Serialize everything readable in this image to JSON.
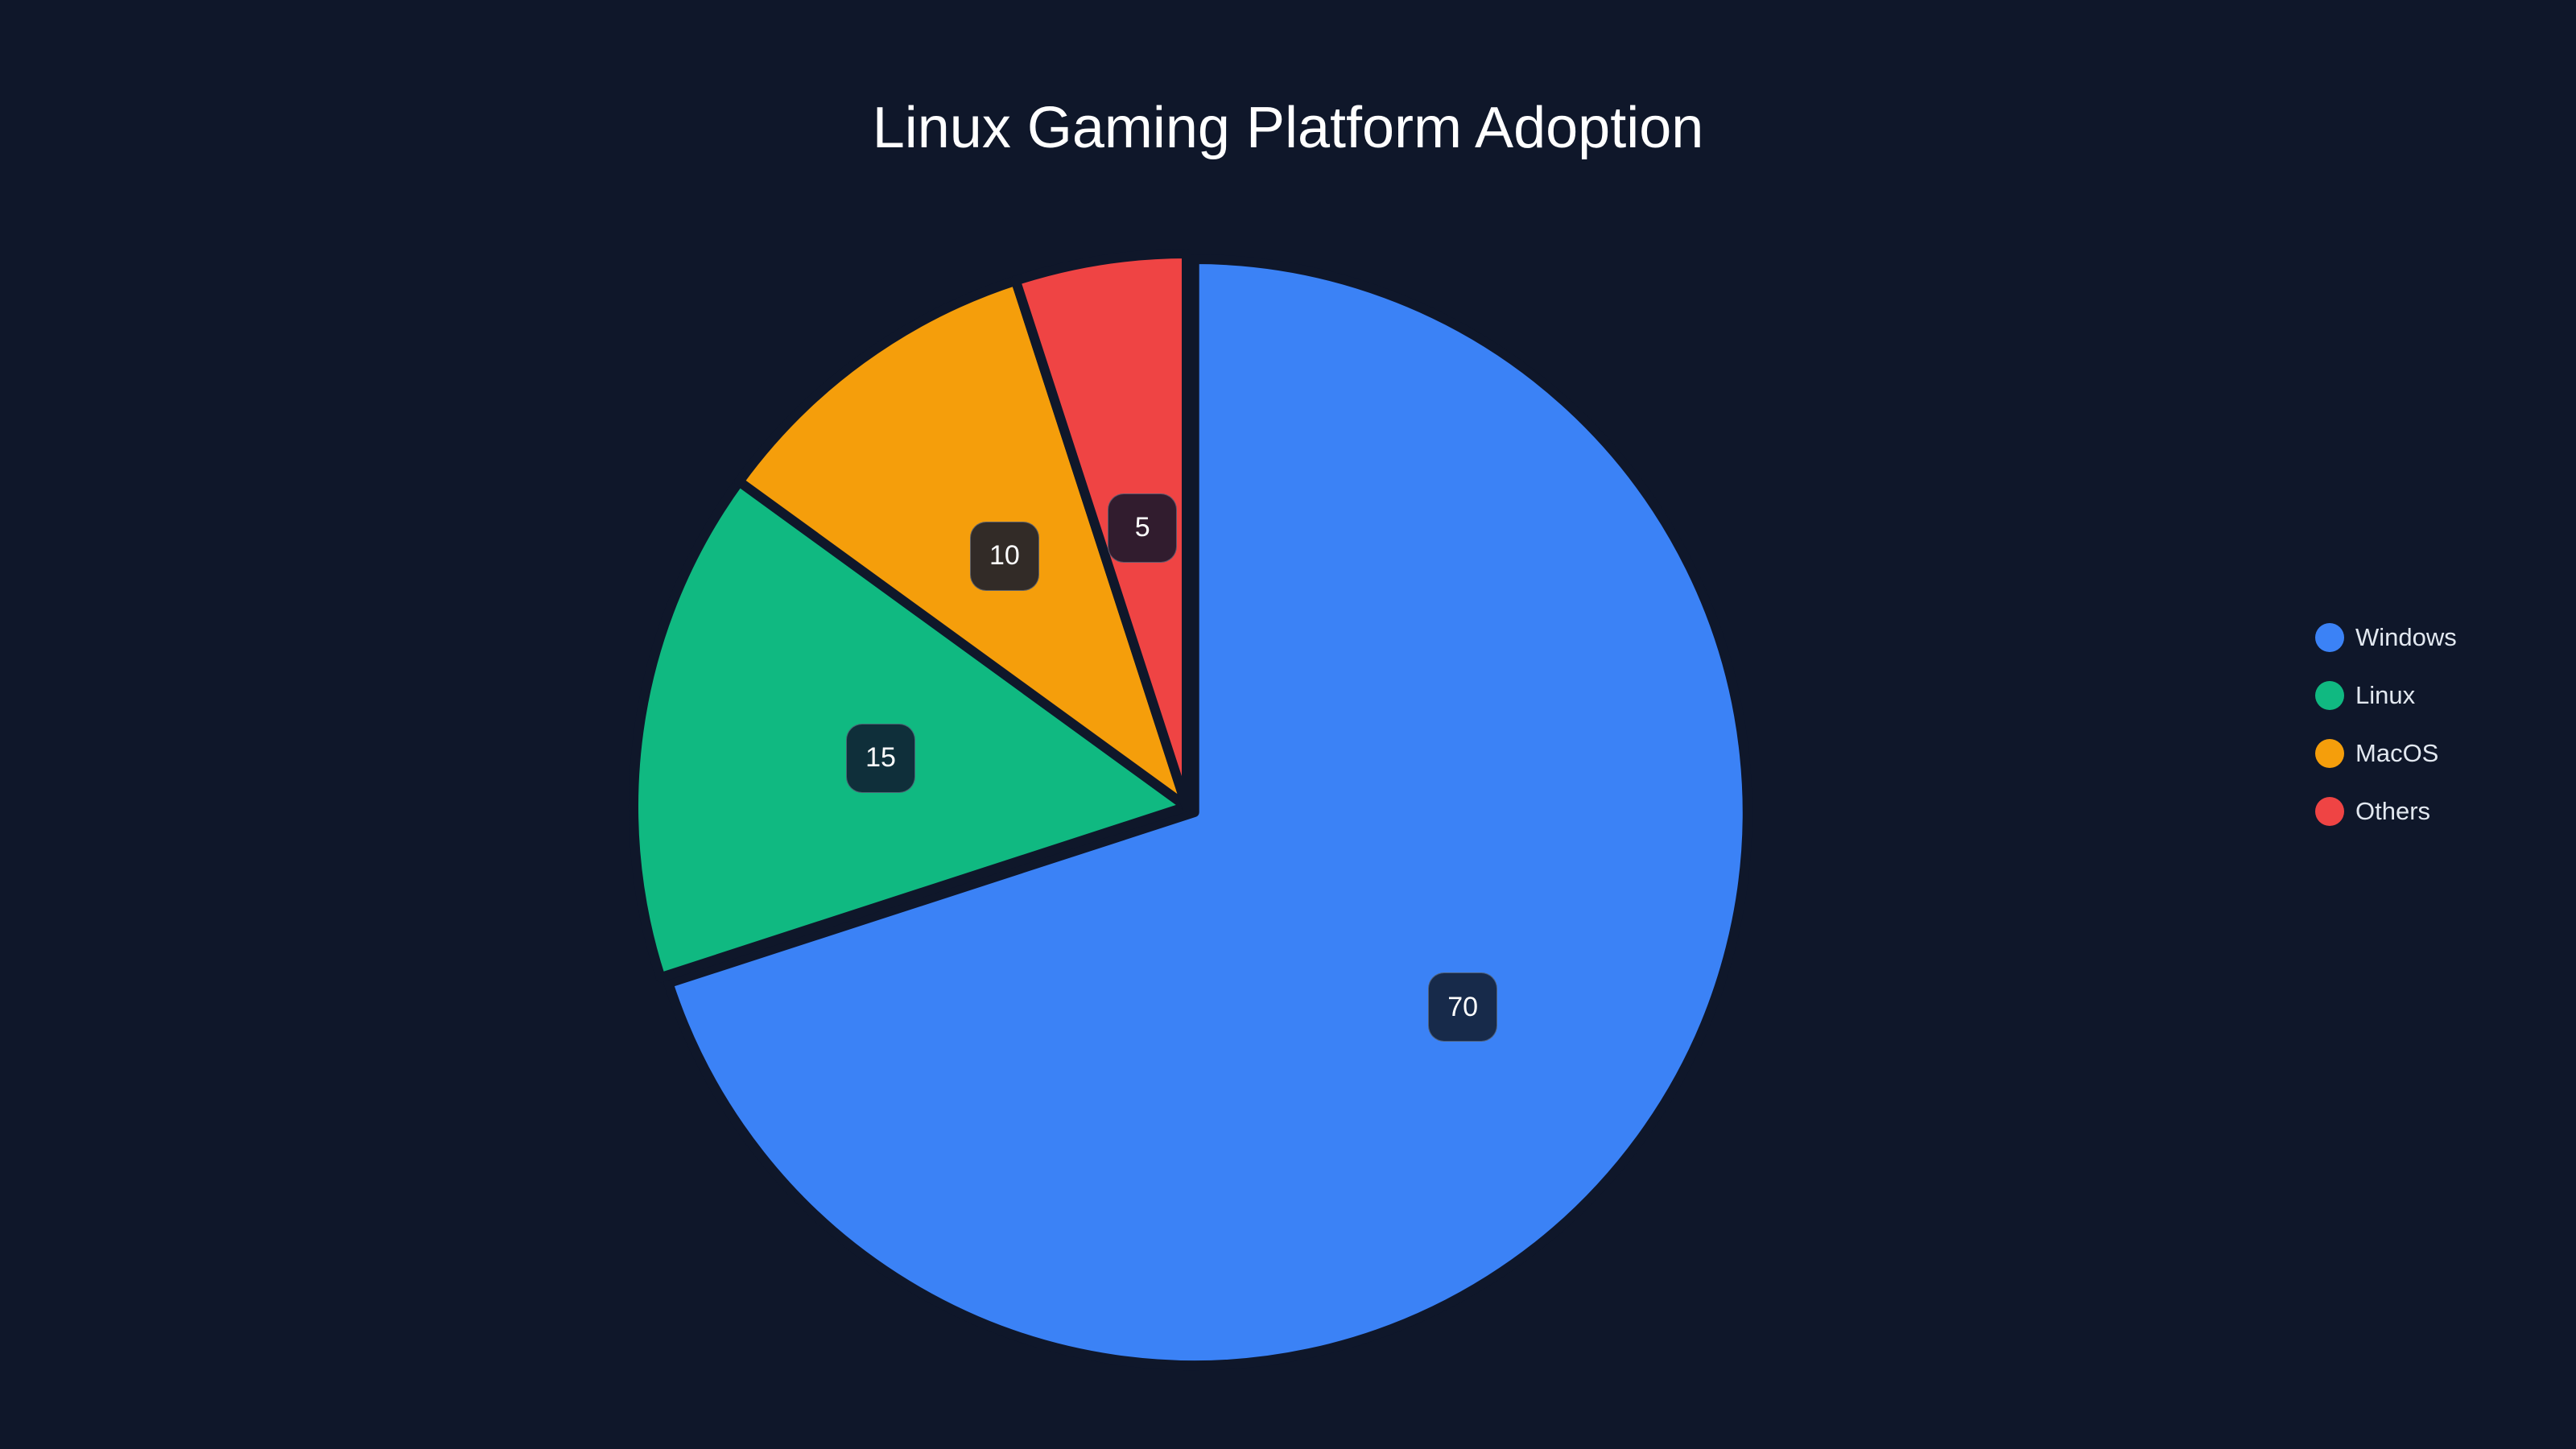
{
  "chart_data": {
    "type": "pie",
    "title": "Linux Gaming Platform Adoption",
    "categories": [
      "Windows",
      "Linux",
      "MacOS",
      "Others"
    ],
    "values": [
      70,
      15,
      10,
      5
    ],
    "colors": [
      "#3b82f6",
      "#10b981",
      "#f59e0b",
      "#ef4444"
    ],
    "label_backgrounds": [
      "#172a4a",
      "#0f2f3a",
      "#322b27",
      "#311c2e"
    ],
    "legend_position": "right",
    "start_angle": "top, clockwise",
    "exploded": [
      "Windows"
    ]
  },
  "title": "Linux Gaming Platform Adoption",
  "legend": [
    {
      "label": "Windows",
      "color": "#3b82f6"
    },
    {
      "label": "Linux",
      "color": "#10b981"
    },
    {
      "label": "MacOS",
      "color": "#f59e0b"
    },
    {
      "label": "Others",
      "color": "#ef4444"
    }
  ],
  "labels": [
    "70",
    "15",
    "10",
    "5"
  ]
}
